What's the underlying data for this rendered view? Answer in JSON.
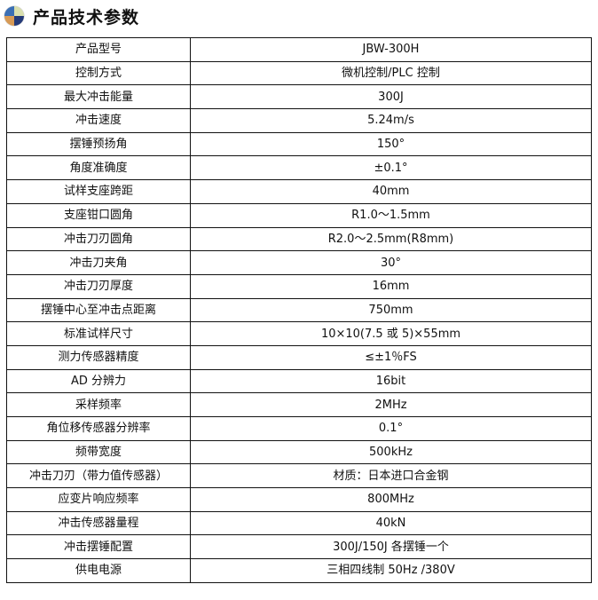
{
  "header": {
    "title": "产品技术参数",
    "icon": "quadrant-circle-icon",
    "icon_colors": [
      "#3a6fb5",
      "#d9dfae",
      "#d79a55",
      "#243a78"
    ]
  },
  "specs": [
    {
      "label": "产品型号",
      "value": "JBW-300H"
    },
    {
      "label": "控制方式",
      "value": "微机控制/PLC 控制"
    },
    {
      "label": "最大冲击能量",
      "value": "300J"
    },
    {
      "label": "冲击速度",
      "value": "5.24m/s"
    },
    {
      "label": "摆锤预扬角",
      "value": "150°"
    },
    {
      "label": "角度准确度",
      "value": "±0.1°"
    },
    {
      "label": "试样支座跨距",
      "value": "40mm"
    },
    {
      "label": "支座钳口圆角",
      "value": "R1.0～1.5mm"
    },
    {
      "label": "冲击刀刃圆角",
      "value": "R2.0～2.5mm(R8mm)"
    },
    {
      "label": "冲击刀夹角",
      "value": "30°"
    },
    {
      "label": "冲击刀刃厚度",
      "value": "16mm"
    },
    {
      "label": "摆锤中心至冲击点距离",
      "value": "750mm"
    },
    {
      "label": "标准试样尺寸",
      "value": "10×10(7.5 或 5)×55mm"
    },
    {
      "label": "测力传感器精度",
      "value": "≤±1％FS"
    },
    {
      "label": "AD 分辨力",
      "value": "16bit"
    },
    {
      "label": "采样频率",
      "value": "2MHz"
    },
    {
      "label": "角位移传感器分辨率",
      "value": "0.1°"
    },
    {
      "label": "频带宽度",
      "value": "500kHz"
    },
    {
      "label": "冲击刀刃（带力值传感器）",
      "value": "材质：日本进口合金钢"
    },
    {
      "label": "应变片响应频率",
      "value": "800MHz"
    },
    {
      "label": "冲击传感器量程",
      "value": "40kN"
    },
    {
      "label": "冲击摆锤配置",
      "value": "300J/150J 各摆锤一个"
    },
    {
      "label": "供电电源",
      "value": "三相四线制 50Hz /380V"
    }
  ]
}
